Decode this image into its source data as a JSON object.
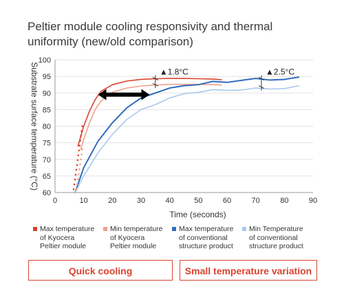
{
  "title_lines": [
    "Peltier module cooling responsivity and thermal",
    "uniformity (new/old comparison)"
  ],
  "chart_data": {
    "type": "line",
    "xlabel": "Time (seconds)",
    "ylabel": "Substrate surface temperature (°C)",
    "xlim": [
      0,
      90
    ],
    "ylim": [
      60,
      100
    ],
    "xticks": [
      "0",
      "10",
      "20",
      "30",
      "40",
      "50",
      "60",
      "70",
      "80",
      "90"
    ],
    "yticks": [
      "60",
      "65",
      "70",
      "75",
      "80",
      "85",
      "90",
      "95",
      "100"
    ],
    "grid": true,
    "legend_position": "bottom",
    "series": [
      {
        "name": "Max temperature of Kyocera Peltier module",
        "color": "#d9432f",
        "x": [
          8,
          9,
          10,
          12,
          14,
          16,
          18,
          20,
          25,
          30,
          35,
          40,
          45,
          50,
          55,
          58
        ],
        "y": [
          74,
          77,
          80,
          84.5,
          88,
          90.5,
          91.5,
          92.5,
          93.6,
          94.1,
          94.3,
          94.4,
          94.4,
          94.3,
          94.2,
          94.0
        ]
      },
      {
        "name": "Min temperature of Kyocera Peltier module",
        "color": "#f0a08c",
        "x": [
          9,
          10,
          12,
          14,
          16,
          18,
          20,
          25,
          30,
          35,
          40,
          45,
          50,
          55,
          58
        ],
        "y": [
          73,
          76,
          81,
          85,
          87.5,
          89,
          90.2,
          91.5,
          92.1,
          92.4,
          92.6,
          92.6,
          92.6,
          92.5,
          92.4
        ]
      },
      {
        "name": "Max temperature of conventional structure product",
        "color": "#2f6bbd",
        "x": [
          7,
          10,
          15,
          20,
          25,
          30,
          35,
          40,
          45,
          50,
          55,
          60,
          65,
          70,
          75,
          80,
          85
        ],
        "y": [
          60,
          67.5,
          75.5,
          81,
          85.5,
          88.5,
          90,
          91.5,
          92.2,
          92.5,
          93.5,
          93.2,
          93.8,
          94.4,
          93.9,
          94.1,
          94.8
        ]
      },
      {
        "name": "Min Temperature of conventional structure product",
        "color": "#a9c8ec",
        "x": [
          7,
          10,
          15,
          20,
          25,
          30,
          35,
          40,
          45,
          50,
          55,
          60,
          65,
          70,
          75,
          80,
          85
        ],
        "y": [
          60,
          65,
          72,
          77.5,
          82,
          85,
          86.5,
          88.5,
          89.8,
          90.2,
          91,
          90.8,
          90.9,
          91.5,
          91.2,
          91.3,
          92.2
        ]
      }
    ],
    "annotations": [
      {
        "label": "▲1.8°C",
        "x": 35,
        "y_top": 94.3,
        "y_bottom": 92.5
      },
      {
        "label": "▲2.5°C",
        "x": 72,
        "y_top": 94.3,
        "y_bottom": 91.8
      }
    ],
    "arrow": {
      "x_from": 15,
      "x_to": 33,
      "y": 89.5
    }
  },
  "legend": [
    {
      "lines": [
        "Max temperature",
        "of Kyocera",
        "Peltier module"
      ],
      "color": "#d9432f"
    },
    {
      "lines": [
        "Min temperature",
        "of Kyocera",
        "Peltier module"
      ],
      "color": "#f0a08c"
    },
    {
      "lines": [
        "Max temperature",
        "of conventional",
        "structure product"
      ],
      "color": "#2f6bbd"
    },
    {
      "lines": [
        "Min Temperature",
        "of conventional",
        "structure product"
      ],
      "color": "#a9c8ec"
    }
  ],
  "callouts": {
    "left": "Quick cooling",
    "right": "Small temperature variation"
  }
}
